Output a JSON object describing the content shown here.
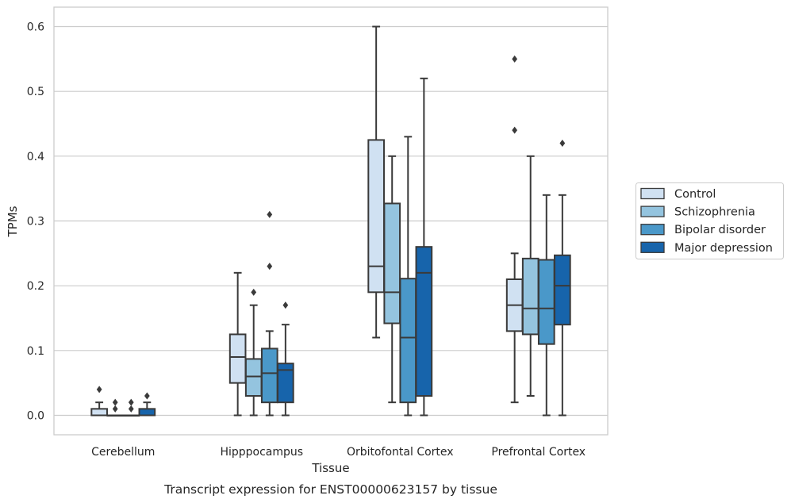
{
  "caption": "Transcript expression for ENST00000623157 by tissue",
  "chart_data": {
    "type": "box",
    "title": "",
    "xlabel": "Tissue",
    "ylabel": "TPMs",
    "ylim": [
      -0.03,
      0.63
    ],
    "yticks": [
      0.0,
      0.1,
      0.2,
      0.3,
      0.4,
      0.5,
      0.6
    ],
    "ytick_labels": [
      "0.0",
      "0.1",
      "0.2",
      "0.3",
      "0.4",
      "0.5",
      "0.6"
    ],
    "grid": "horizontal",
    "legend_position": "outside-right",
    "categories": [
      "Cerebellum",
      "Hipppocampus",
      "Orbitofontal Cortex",
      "Prefrontal Cortex"
    ],
    "series": [
      {
        "name": "Control",
        "color": "#d0e1f2",
        "boxes": [
          {
            "whisker_low": 0.0,
            "q1": 0.0,
            "median": 0.0,
            "q3": 0.01,
            "whisker_high": 0.02,
            "outliers": [
              0.04
            ]
          },
          {
            "whisker_low": 0.0,
            "q1": 0.05,
            "median": 0.09,
            "q3": 0.125,
            "whisker_high": 0.22,
            "outliers": []
          },
          {
            "whisker_low": 0.12,
            "q1": 0.19,
            "median": 0.23,
            "q3": 0.425,
            "whisker_high": 0.6,
            "outliers": []
          },
          {
            "whisker_low": 0.02,
            "q1": 0.13,
            "median": 0.17,
            "q3": 0.21,
            "whisker_high": 0.25,
            "outliers": [
              0.44,
              0.55
            ]
          }
        ]
      },
      {
        "name": "Schizophrenia",
        "color": "#94c4df",
        "boxes": [
          {
            "whisker_low": 0.0,
            "q1": 0.0,
            "median": 0.0,
            "q3": 0.0,
            "whisker_high": 0.0,
            "outliers": [
              0.01,
              0.02
            ]
          },
          {
            "whisker_low": 0.0,
            "q1": 0.03,
            "median": 0.06,
            "q3": 0.087,
            "whisker_high": 0.17,
            "outliers": [
              0.19
            ]
          },
          {
            "whisker_low": 0.02,
            "q1": 0.142,
            "median": 0.19,
            "q3": 0.327,
            "whisker_high": 0.4,
            "outliers": []
          },
          {
            "whisker_low": 0.03,
            "q1": 0.125,
            "median": 0.165,
            "q3": 0.242,
            "whisker_high": 0.4,
            "outliers": []
          }
        ]
      },
      {
        "name": "Bipolar disorder",
        "color": "#4a98c9",
        "boxes": [
          {
            "whisker_low": 0.0,
            "q1": 0.0,
            "median": 0.0,
            "q3": 0.0,
            "whisker_high": 0.0,
            "outliers": [
              0.01,
              0.02
            ]
          },
          {
            "whisker_low": 0.0,
            "q1": 0.02,
            "median": 0.065,
            "q3": 0.103,
            "whisker_high": 0.13,
            "outliers": [
              0.23,
              0.31
            ]
          },
          {
            "whisker_low": 0.0,
            "q1": 0.02,
            "median": 0.12,
            "q3": 0.211,
            "whisker_high": 0.43,
            "outliers": []
          },
          {
            "whisker_low": 0.0,
            "q1": 0.11,
            "median": 0.165,
            "q3": 0.24,
            "whisker_high": 0.34,
            "outliers": []
          }
        ]
      },
      {
        "name": "Major depression",
        "color": "#1764ab",
        "boxes": [
          {
            "whisker_low": 0.0,
            "q1": 0.0,
            "median": 0.0,
            "q3": 0.01,
            "whisker_high": 0.02,
            "outliers": [
              0.03
            ]
          },
          {
            "whisker_low": 0.0,
            "q1": 0.02,
            "median": 0.07,
            "q3": 0.08,
            "whisker_high": 0.14,
            "outliers": [
              0.17
            ]
          },
          {
            "whisker_low": 0.0,
            "q1": 0.03,
            "median": 0.22,
            "q3": 0.26,
            "whisker_high": 0.52,
            "outliers": []
          },
          {
            "whisker_low": 0.0,
            "q1": 0.14,
            "median": 0.2,
            "q3": 0.247,
            "whisker_high": 0.34,
            "outliers": [
              0.42
            ]
          }
        ]
      }
    ]
  }
}
